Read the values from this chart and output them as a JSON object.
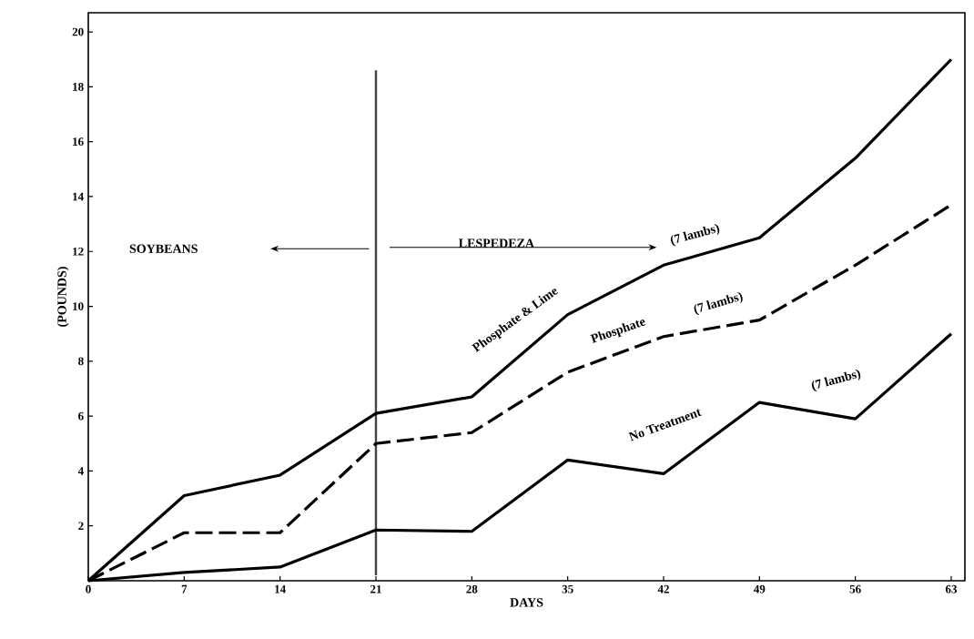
{
  "chart_data": {
    "type": "line",
    "xlabel": "DAYS",
    "ylabel": "(POUNDS)",
    "x": [
      0,
      7,
      14,
      21,
      28,
      35,
      42,
      49,
      56,
      63
    ],
    "series": [
      {
        "name": "Phosphate & Lime",
        "color": "#000000",
        "line_style": "solid",
        "values": [
          0,
          3.1,
          3.85,
          6.1,
          6.7,
          9.7,
          11.5,
          12.5,
          15.4,
          19.0
        ]
      },
      {
        "name": "Phosphate",
        "color": "#000000",
        "line_style": "dashed",
        "values": [
          0,
          1.75,
          1.75,
          5.0,
          5.4,
          7.6,
          8.9,
          9.5,
          11.5,
          13.7
        ]
      },
      {
        "name": "No Treatment",
        "color": "#000000",
        "line_style": "solid",
        "values": [
          0,
          0.3,
          0.5,
          1.85,
          1.8,
          4.4,
          3.9,
          6.5,
          5.9,
          9.0
        ]
      }
    ],
    "xlim": [
      0,
      64
    ],
    "ylim": [
      0,
      20.7
    ],
    "xticks": [
      0,
      7,
      14,
      21,
      28,
      35,
      42,
      49,
      56,
      63
    ],
    "yticks": [
      2,
      4,
      6,
      8,
      10,
      12,
      14,
      16,
      18,
      20
    ],
    "ref_lines": [
      {
        "axis": "x",
        "value": 21,
        "color": "#444444"
      }
    ],
    "annotations": [
      "SOYBEANS",
      "LESPEDEZA",
      "(7 lambs)",
      "(7 lambs)",
      "(7 lambs)"
    ],
    "grid": false
  }
}
